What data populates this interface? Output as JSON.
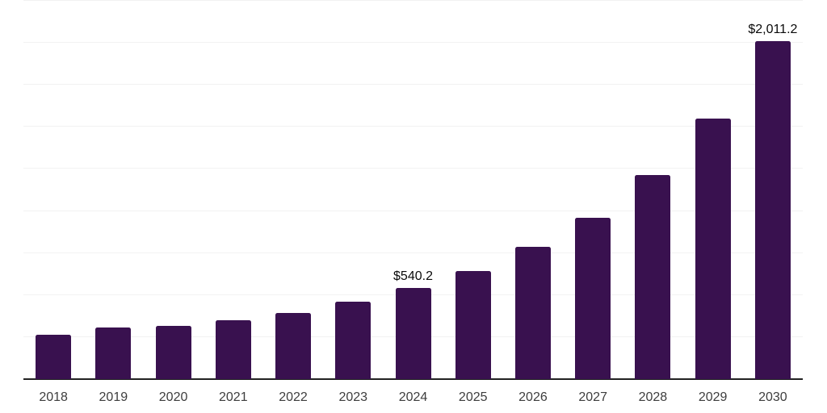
{
  "chart_data": {
    "type": "bar",
    "title": "",
    "xlabel": "",
    "ylabel": "",
    "categories": [
      "2018",
      "2019",
      "2020",
      "2021",
      "2022",
      "2023",
      "2024",
      "2025",
      "2026",
      "2027",
      "2028",
      "2029",
      "2030"
    ],
    "values": [
      264,
      307,
      316,
      350,
      395,
      460,
      540.2,
      644,
      786,
      960,
      1214,
      1550,
      2011.2
    ],
    "bar_labels": [
      "",
      "",
      "",
      "",
      "",
      "",
      "$540.2",
      "",
      "",
      "",
      "",
      "",
      "$2,011.2"
    ],
    "ylim": [
      0,
      2250
    ],
    "gridline_step": 250,
    "grid": true,
    "legend_position": "none",
    "y_tick_labels_visible": false
  },
  "colors": {
    "bar": "#39114F",
    "axis_line": "#222222",
    "gridline": "#F2F2F2",
    "tick_label": "#3D3D3D",
    "data_label": "#0A0A0A",
    "background": "#FFFFFF"
  }
}
